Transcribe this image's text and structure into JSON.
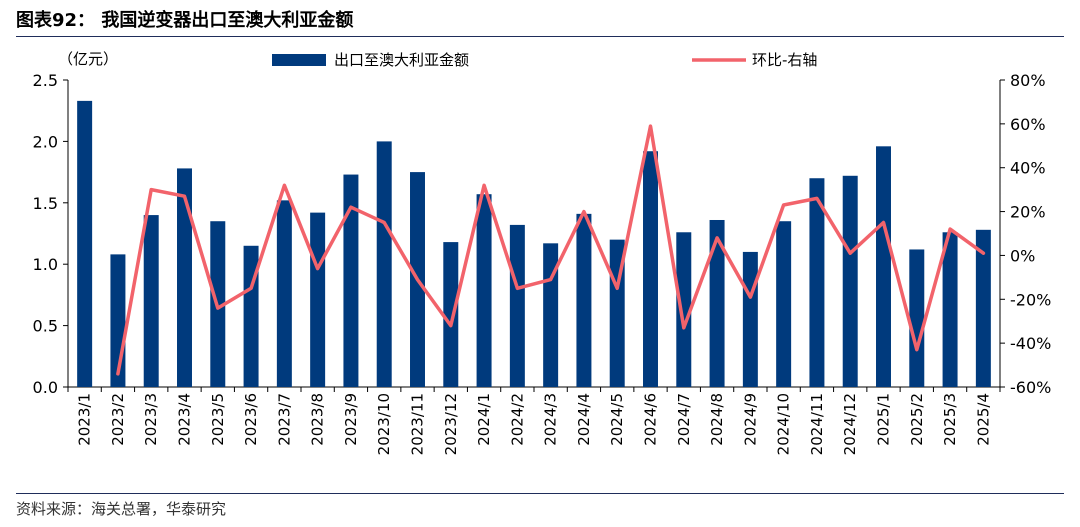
{
  "title": "图表92： 我国逆变器出口至澳大利亚金额",
  "source": "资料来源：海关总署，华泰研究",
  "colors": {
    "bar": "#003a7d",
    "line": "#f2636b",
    "rule": "#1f2d5a"
  },
  "chart_data": {
    "type": "bar+line",
    "left_unit_label": "（亿元）",
    "categories": [
      "2023/1",
      "2023/2",
      "2023/3",
      "2023/4",
      "2023/5",
      "2023/6",
      "2023/7",
      "2023/8",
      "2023/9",
      "2023/10",
      "2023/11",
      "2023/12",
      "2024/1",
      "2024/2",
      "2024/3",
      "2024/4",
      "2024/5",
      "2024/6",
      "2024/7",
      "2024/8",
      "2024/9",
      "2024/10",
      "2024/11",
      "2024/12",
      "2025/1",
      "2025/2",
      "2025/3",
      "2025/4"
    ],
    "series": [
      {
        "name": "出口至澳大利亚金额",
        "type": "bar",
        "axis": "left",
        "values": [
          2.33,
          1.08,
          1.4,
          1.78,
          1.35,
          1.15,
          1.52,
          1.42,
          1.73,
          2.0,
          1.75,
          1.18,
          1.57,
          1.32,
          1.17,
          1.41,
          1.2,
          1.92,
          1.26,
          1.36,
          1.1,
          1.35,
          1.7,
          1.72,
          1.96,
          1.12,
          1.26,
          1.28
        ]
      },
      {
        "name": "环比-右轴",
        "type": "line",
        "axis": "right",
        "values": [
          null,
          -54,
          30,
          27,
          -24,
          -15,
          32,
          -6,
          22,
          15,
          -11,
          -32,
          32,
          -15,
          -11,
          20,
          -15,
          59,
          -33,
          8,
          -19,
          23,
          26,
          1,
          15,
          -43,
          12,
          1
        ]
      }
    ],
    "y_left": {
      "min": 0,
      "max": 2.5,
      "ticks": [
        "0.0",
        "0.5",
        "1.0",
        "1.5",
        "2.0",
        "2.5"
      ]
    },
    "y_right": {
      "min": -60,
      "max": 80,
      "ticks": [
        "-60%",
        "-40%",
        "-20%",
        "0%",
        "20%",
        "40%",
        "60%",
        "80%"
      ]
    },
    "legend_placement": "top"
  }
}
